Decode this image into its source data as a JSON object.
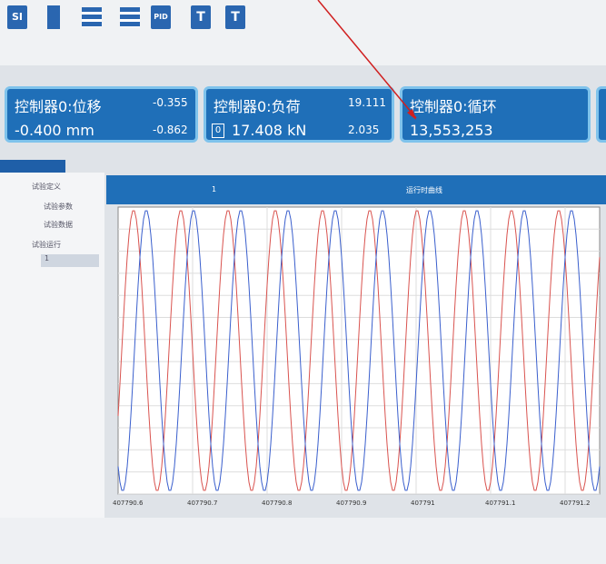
{
  "toolbar": {
    "buttons": [
      "SI",
      "PID",
      "T",
      "T"
    ]
  },
  "cards": [
    {
      "title": "控制器0:位移",
      "value": "-0.400 mm",
      "upper": "-0.355",
      "lower": "-0.862"
    },
    {
      "title": "控制器0:负荷",
      "value": "17.408 kN",
      "upper": "19.111",
      "lower": "2.035",
      "badge": "0"
    },
    {
      "title": "控制器0:循环",
      "value": "13,553,253"
    }
  ],
  "tree": [
    "试验定义",
    "试验参数",
    "试验数据",
    "试验运行",
    "1"
  ],
  "chart": {
    "tab": "1",
    "title": "运行时曲线",
    "x_labels": [
      "407790.6",
      "407790.7",
      "407790.8",
      "407790.9",
      "407791",
      "407791.1",
      "407791.2"
    ]
  }
}
